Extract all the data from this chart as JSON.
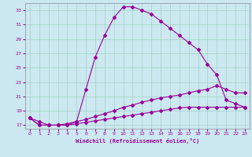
{
  "xlabel": "Windchill (Refroidissement éolien,°C)",
  "bg_color": "#cce8f0",
  "line_color": "#990099",
  "main_x": [
    0,
    1,
    2,
    3,
    4,
    5,
    6,
    7,
    8,
    9,
    10,
    11,
    12,
    13,
    14,
    15,
    16,
    17,
    18,
    19,
    20,
    21,
    22,
    23
  ],
  "main_y": [
    18.0,
    17.5,
    17.0,
    17.0,
    17.0,
    17.5,
    22.0,
    26.5,
    29.5,
    32.0,
    33.5,
    33.5,
    33.0,
    32.5,
    31.5,
    30.5,
    29.5,
    28.5,
    27.5,
    25.5,
    24.0,
    20.5,
    20.0,
    19.5
  ],
  "mid_x": [
    0,
    1,
    2,
    3,
    4,
    5,
    6,
    7,
    8,
    9,
    10,
    11,
    12,
    13,
    14,
    15,
    16,
    17,
    18,
    19,
    20,
    21,
    22,
    23
  ],
  "mid_y": [
    18.0,
    17.0,
    17.0,
    17.0,
    17.2,
    17.5,
    17.8,
    18.2,
    18.6,
    19.0,
    19.5,
    19.8,
    20.2,
    20.5,
    20.8,
    21.0,
    21.2,
    21.5,
    21.8,
    22.0,
    22.5,
    22.0,
    21.5,
    21.5
  ],
  "low_x": [
    0,
    1,
    2,
    3,
    4,
    5,
    6,
    7,
    8,
    9,
    10,
    11,
    12,
    13,
    14,
    15,
    16,
    17,
    18,
    19,
    20,
    21,
    22,
    23
  ],
  "low_y": [
    18.0,
    17.0,
    17.0,
    17.0,
    17.0,
    17.2,
    17.4,
    17.6,
    17.8,
    18.0,
    18.2,
    18.4,
    18.6,
    18.8,
    19.0,
    19.2,
    19.4,
    19.5,
    19.5,
    19.5,
    19.5,
    19.5,
    19.5,
    19.5
  ],
  "xlim": [
    -0.5,
    23.5
  ],
  "ylim": [
    16.5,
    34.0
  ],
  "yticks": [
    17,
    19,
    21,
    23,
    25,
    27,
    29,
    31,
    33
  ],
  "xticks": [
    0,
    1,
    2,
    3,
    4,
    5,
    6,
    7,
    8,
    9,
    10,
    11,
    12,
    13,
    14,
    15,
    16,
    17,
    18,
    19,
    20,
    21,
    22,
    23
  ]
}
